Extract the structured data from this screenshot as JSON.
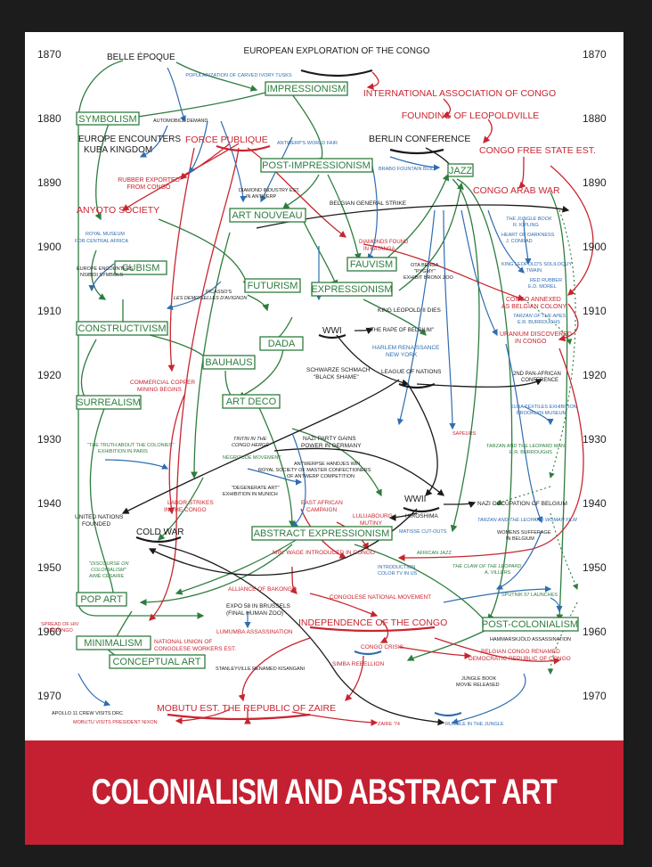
{
  "title": "COLONIALISM AND ABSTRACT ART",
  "colors": {
    "green": "#2e7d3e",
    "red": "#c9252f",
    "black": "#1a1a1a",
    "blue": "#2f6db0",
    "banner": "#c42032"
  },
  "years": [
    "1870",
    "1880",
    "1890",
    "1900",
    "1910",
    "1920",
    "1930",
    "1940",
    "1950",
    "1960",
    "1970"
  ],
  "nodes": {
    "belle_epoque": "BELLE ÉPOQUE",
    "european_exploration": "EUROPEAN EXPLORATION OF THE CONGO",
    "popularization_ivory": "POPULARIZATION OF CARVED IVORY TUSKS",
    "impressionism": "IMPRESSIONISM",
    "intl_association": "INTERNATIONAL ASSOCIATION OF CONGO",
    "founding_leopoldville": "FOUNDING OF LEOPOLDVILLE",
    "symbolism": "SYMBOLISM",
    "automobile_demand": "AUTOMOBILE DEMAND",
    "europe_kuba_1": "EUROPE ENCOUNTERS",
    "europe_kuba_2": "KUBA KINGDOM",
    "force_publique": "FORCE PUBLIQUE",
    "antwerp_fair": "ANTWERP'S WORLD FAIR",
    "berlin_conference": "BERLIN CONFERENCE",
    "congo_free_state": "CONGO FREE STATE EST.",
    "post_impressionism": "POST-IMPRESSIONISM",
    "brabo_fountain": "BRABO FOUNTAIN BUILT",
    "jazz": "JAZZ",
    "rubber_1": "RUBBER EXPORTED",
    "rubber_2": "FROM CONGO",
    "diamond_ind_1": "DIAMOND INDUSTRY EST.",
    "diamond_ind_2": "IN ANTWERP",
    "congo_arab_war": "CONGO ARAB WAR",
    "anyoto": "ANYOTO SOCIETY",
    "belgian_strike": "BELGIAN GENERAL STRIKE",
    "art_nouveau": "ART NOUVEAU",
    "jungle_book_1": "THE JUNGLE BOOK",
    "jungle_book_2": "R. KIPLING",
    "royal_museum_1": "ROYAL MUSEUM",
    "royal_museum_2": "FOR CENTRAL AFRICA",
    "diamonds_katanga_1": "DIAMONDS FOUND",
    "diamonds_katanga_2": "IN KATANGA",
    "heart_darkness_1": "HEART OF DARKNESS",
    "heart_darkness_2": "J. CONRAD",
    "fauvism": "FAUVISM",
    "ota_benga_1": "OTA BENGA",
    "ota_benga_2": "\"PYGMY\"",
    "ota_benga_3": "EXHIBIT BRONX ZOO",
    "king_soliloquy_1": "KING LEOPOLD'S SOLILOQUY",
    "king_soliloquy_2": "M. TWAIN",
    "europe_nsibidi_1": "EUROPE ENCOUNTERS",
    "europe_nsibidi_2": "NSIBIDI SYMBOLS",
    "red_rubber_1": "RED RUBBER",
    "red_rubber_2": "E.D. MOREL",
    "cubism": "CUBISM",
    "picasso_1": "PICASSO'S",
    "picasso_2": "LES DEMOISELLES D'AVIGNON",
    "expressionism": "EXPRESSIONISM",
    "congo_annexed_1": "CONGO ANNEXED",
    "congo_annexed_2": "AS BELGIAN COLONY",
    "king_leopold_dies": "KING LEOPOLD II DIES",
    "futurism": "FUTURISM",
    "tarzan_apes_1": "TARZAN OF THE APES",
    "tarzan_apes_2": "E.R. BURROUGHS",
    "constructivism": "CONSTRUCTIVISM",
    "wwi": "WWI",
    "rape_belgium": "\"THE RAPE OF BELGIUM\"",
    "uranium_1": "URANIUM DISCOVERED",
    "uranium_2": "IN CONGO",
    "dada": "DADA",
    "harlem_1": "HARLEM RENAISSANCE",
    "harlem_2": "NEW YORK",
    "bauhaus": "BAUHAUS",
    "schwarze_1": "SCHWARZE SCHMACH",
    "schwarze_2": "\"BLACK SHAME\"",
    "league": "LEAGUE OF NATIONS",
    "pan_african_1": "2ND PAN-AFRICAN",
    "pan_african_2": "CONFERENCE",
    "copper_1": "COMMERCIAL COPPER",
    "copper_2": "MINING BEGINS",
    "surrealism": "SURREALISM",
    "art_deco": "ART DECO",
    "kuba_textiles_1": "KUBA TEXTILES EXHIBITION",
    "kuba_textiles_2": "BROOKLYN MUSEUM",
    "truth_colonies_1": "\"THE TRUTH ABOUT THE COLONIES\"",
    "truth_colonies_2": "EXHIBITION IN PARIS",
    "tintin_1": "TINTIN IN THE",
    "tintin_2": "CONGO HERGÉ",
    "nazi_power_1": "NAZI PARTY GAINS",
    "nazi_power_2": "POWER IN GERMANY",
    "sapeurs": "SAPEURS",
    "tarzan_leopard_man_1": "TARZAN AND THE LEOPARD MAN",
    "tarzan_leopard_man_2": "E.R. BURROUGHS",
    "negritude": "NÉGRITUDE MOVEMENT",
    "antwerpse_1": "ANTWERPSE HANDJES WIN",
    "antwerpse_2": "ROYAL SOCIETY OF MASTER CONFECTIONERS",
    "antwerpse_3": "OF ANTWERP COMPETITION",
    "degenerate_1": "\"DEGENERATE ART\"",
    "degenerate_2": "EXHIBITION IN MUNICH",
    "labor_strikes_1": "LABOR STRIKES",
    "labor_strikes_2": "IN THE CONGO",
    "wwii": "WWII",
    "nazi_occupation": "NAZI OCCUPATION OF BELGIUM",
    "un_1": "UNITED NATIONS",
    "un_2": "FOUNDED",
    "east_african_1": "EAST AFRICAN",
    "east_african_2": "CAMPAIGN",
    "luluabourg_1": "LULUABOURG",
    "luluabourg_2": "MUTINY",
    "hiroshima": "HIROSHIMA",
    "tarzan_leopard_woman": "TARZAN AND THE LEOPARD WOMAN FILM",
    "cold_war": "COLD WAR",
    "matisse": "MATISSE CUT-OUTS",
    "womens_suffrage_1": "WOMENS SUFFERAGE",
    "womens_suffrage_2": "IN BELGIUM",
    "abstract_expressionism": "ABSTRACT EXPRESSIONISM",
    "min_wage": "MIN. WAGE INTRODUCED IN CONGO",
    "african_jazz": "AFRICAN JAZZ",
    "discourse_1": "\"DISCOURSE ON",
    "discourse_2": "COLONIALISM\"",
    "discourse_3": "AIMÉ CÉSAIRE",
    "color_tv_1": "INTRODUCTION",
    "color_tv_2": "COLOR TV IN US",
    "claw_leopard_1": "THE CLAW OF THE LEOPARD",
    "claw_leopard_2": "A. VILLERS",
    "pop_art": "POP ART",
    "alliance_bakongo": "ALLIANCE OF BAKONGO",
    "congolese_national": "CONGOLESE NATIONAL MOVEMENT",
    "sputnik": "SPUTNIK 57 LAUNCHES",
    "expo58_1": "EXPO 58 IN BRUSSELS",
    "expo58_2": "(FINAL HUMAN ZOO)",
    "independence": "INDEPENDENCE OF THE CONGO",
    "post_colonialism": "POST-COLONIALISM",
    "spread_hiv_1": "SPREAD OF HIV",
    "spread_hiv_2": "IN CONGO",
    "lumumba": "LUMUMBA ASSASSINATION",
    "hammarskjold": "HAMMARSKJÖLD ASSASSINATION",
    "minimalism": "MINIMALISM",
    "national_union_1": "NATIONAL UNION OF",
    "national_union_2": "CONGOLESE WORKERS EST.",
    "congo_crisis": "CONGO CRISIS",
    "belgian_congo_renamed_1": "BELGIAN CONGO RENAMED",
    "belgian_congo_renamed_2": "DEMOCRATIC REPUBLIC OF CONGO",
    "conceptual_art": "CONCEPTUAL ART",
    "stanleyville": "STANLEYVILLE RENAMED KISANGANI",
    "simba": "SIMBA REBELLION",
    "jungle_movie_1": "JUNGLE BOOK",
    "jungle_movie_2": "MOVIE RELEASED",
    "apollo": "APOLLO 11 CREW VISITS DRC",
    "mobutu": "MOBUTU EST. THE REPUBLIC OF ZAIRE",
    "mobutu_nixon": "MOBUTU VISITS PRESIDENT NIXON",
    "zaire74": "ZAIRE '74",
    "rumble": "RUMBLE IN THE JUNGLE"
  }
}
